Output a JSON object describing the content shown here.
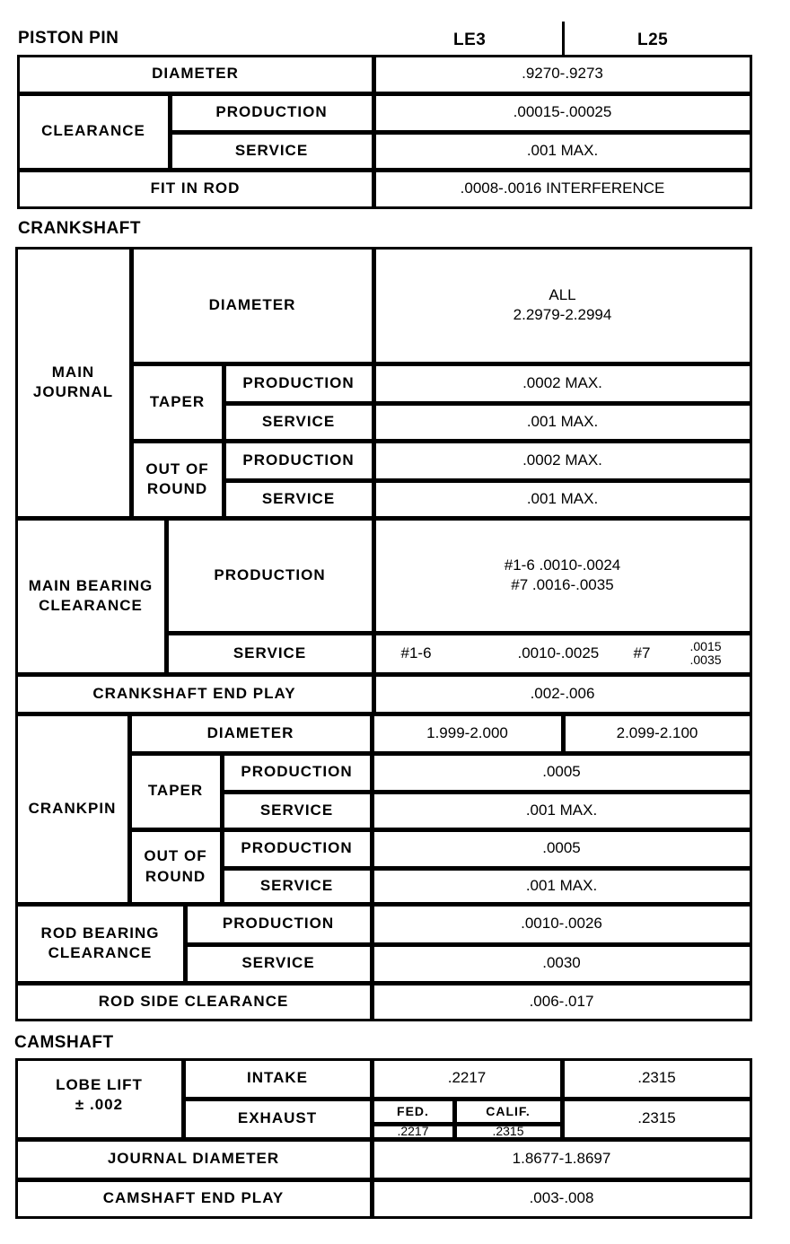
{
  "piston_pin": {
    "title": "PISTON PIN",
    "col_le3": "LE3",
    "col_l25": "L25",
    "diameter": "DIAMETER",
    "diameter_val": ".9270-.9273",
    "clearance": "CLEARANCE",
    "production": "PRODUCTION",
    "production_val": ".00015-.00025",
    "service": "SERVICE",
    "service_val": ".001 MAX.",
    "fit_in_rod": "FIT IN ROD",
    "fit_in_rod_val": ".0008-.0016 INTERFERENCE"
  },
  "crankshaft": {
    "title": "CRANKSHAFT",
    "main_journal": "MAIN JOURNAL",
    "diameter": "DIAMETER",
    "diameter_all": "ALL",
    "diameter_val": "2.2979-2.2994",
    "taper": "TAPER",
    "production": "PRODUCTION",
    "service": "SERVICE",
    "taper_prod_val": ".0002 MAX.",
    "taper_serv_val": ".001 MAX.",
    "out_of_round": "OUT OF ROUND",
    "oor_prod_val": ".0002 MAX.",
    "oor_serv_val": ".001 MAX.",
    "main_bearing_clearance": "MAIN BEARING CLEARANCE",
    "mbc_prod_val_1": "#1-6 .0010-.0024",
    "mbc_prod_val_2": "#7 .0016-.0035",
    "mbc_serv_a": "#1-6",
    "mbc_serv_b": ".0010-.0025",
    "mbc_serv_c": "#7",
    "mbc_serv_d1": ".0015",
    "mbc_serv_d2": ".0035",
    "end_play": "CRANKSHAFT END PLAY",
    "end_play_val": ".002-.006",
    "crankpin": "CRANKPIN",
    "crankpin_diam_le3": "1.999-2.000",
    "crankpin_diam_l25": "2.099-2.100",
    "cp_taper_prod_val": ".0005",
    "cp_taper_serv_val": ".001 MAX.",
    "cp_oor_prod_val": ".0005",
    "cp_oor_serv_val": ".001 MAX.",
    "rod_bearing_clearance": "ROD BEARING CLEARANCE",
    "rbc_prod_val": ".0010-.0026",
    "rbc_serv_val": ".0030",
    "rod_side_clearance": "ROD SIDE CLEARANCE",
    "rod_side_val": ".006-.017"
  },
  "camshaft": {
    "title": "CAMSHAFT",
    "lobe_lift": "LOBE LIFT",
    "lobe_tol": "± .002",
    "intake": "INTAKE",
    "exhaust": "EXHAUST",
    "intake_le3": ".2217",
    "intake_l25": ".2315",
    "fed": "FED.",
    "calif": "CALIF.",
    "exh_fed": ".2217",
    "exh_calif": ".2315",
    "exh_l25": ".2315",
    "journal_diameter": "JOURNAL DIAMETER",
    "journal_val": "1.8677-1.8697",
    "end_play": "CAMSHAFT END PLAY",
    "end_play_val": ".003-.008"
  }
}
